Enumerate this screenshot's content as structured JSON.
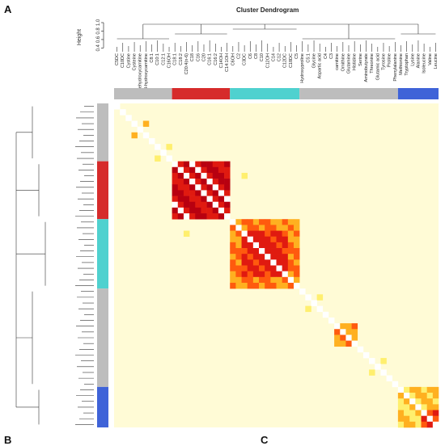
{
  "panel_letters": {
    "a": "A",
    "b": "B",
    "c": "C"
  },
  "chart_data": {
    "type": "heatmap",
    "title": "Cluster Dendrogram",
    "ylabel": "Height",
    "y_ticks": [
      "0.4",
      "0.6",
      "0.8",
      "1.0"
    ],
    "ylim": [
      0.35,
      1.0
    ],
    "legend": "none",
    "grid": false,
    "labels": [
      "C5DC",
      "C10DC",
      "Cystine",
      "Cysteine",
      "3-dehydroxycarnitine",
      "3-hydroxycarnitine",
      "C8:1",
      "C10:1",
      "C12:1",
      "C16OH",
      "C18:1",
      "C18:2",
      "C20:4(n-6)",
      "C18",
      "C16",
      "C20",
      "C16:1",
      "C16:2",
      "C14OH",
      "C14:1OH",
      "C6OH",
      "C2",
      "C3DC",
      "C6",
      "C8",
      "C10",
      "C12OH",
      "C14",
      "C12",
      "C12DC",
      "C18DC",
      "C5",
      "Hydroxyproline",
      "C5:1",
      "Glycine",
      "Aspartic acid",
      "C4",
      "C3",
      "carnitine",
      "Ornithine",
      "Glutamine",
      "Histidine",
      "Serine",
      "Aminobutyrate",
      "Threonine",
      "Glutamic acid",
      "Tyrosine",
      "Proline",
      "Phenylalanine",
      "Methionine",
      "Tryptophan",
      "Lysine",
      "Alanine",
      "Isoleucine",
      "Valine",
      "Leucine"
    ],
    "clusters": [
      {
        "name": "grey-1",
        "color": "#bdbdbd",
        "size": 10
      },
      {
        "name": "red",
        "color": "#d62b2b",
        "size": 10
      },
      {
        "name": "cyan",
        "color": "#4fd1cf",
        "size": 12
      },
      {
        "name": "grey-2",
        "color": "#bdbdbd",
        "size": 17
      },
      {
        "name": "blue",
        "color": "#3f63d8",
        "size": 7
      }
    ],
    "color_scale": [
      "#fffbd6",
      "#ffef6e",
      "#ffb020",
      "#ff5a0e",
      "#e01a10",
      "#b80010"
    ],
    "blocks": [
      {
        "start": 10,
        "end": 20,
        "corr": 0.9
      },
      {
        "start": 20,
        "end": 32,
        "corr": 0.5
      },
      {
        "start": 22,
        "end": 30,
        "corr": 0.75
      },
      {
        "start": 38,
        "end": 42,
        "corr": 0.45
      },
      {
        "start": 49,
        "end": 56,
        "corr": 0.3
      },
      {
        "start": 53,
        "end": 56,
        "corr": 0.7
      }
    ],
    "extra_cells": [
      {
        "i": 3,
        "j": 5,
        "corr": 0.3
      },
      {
        "i": 7,
        "j": 9,
        "corr": 0.28
      },
      {
        "i": 12,
        "j": 22,
        "corr": 0.25
      },
      {
        "i": 33,
        "j": 35,
        "corr": 0.2
      },
      {
        "i": 44,
        "j": 46,
        "corr": 0.22
      }
    ]
  }
}
